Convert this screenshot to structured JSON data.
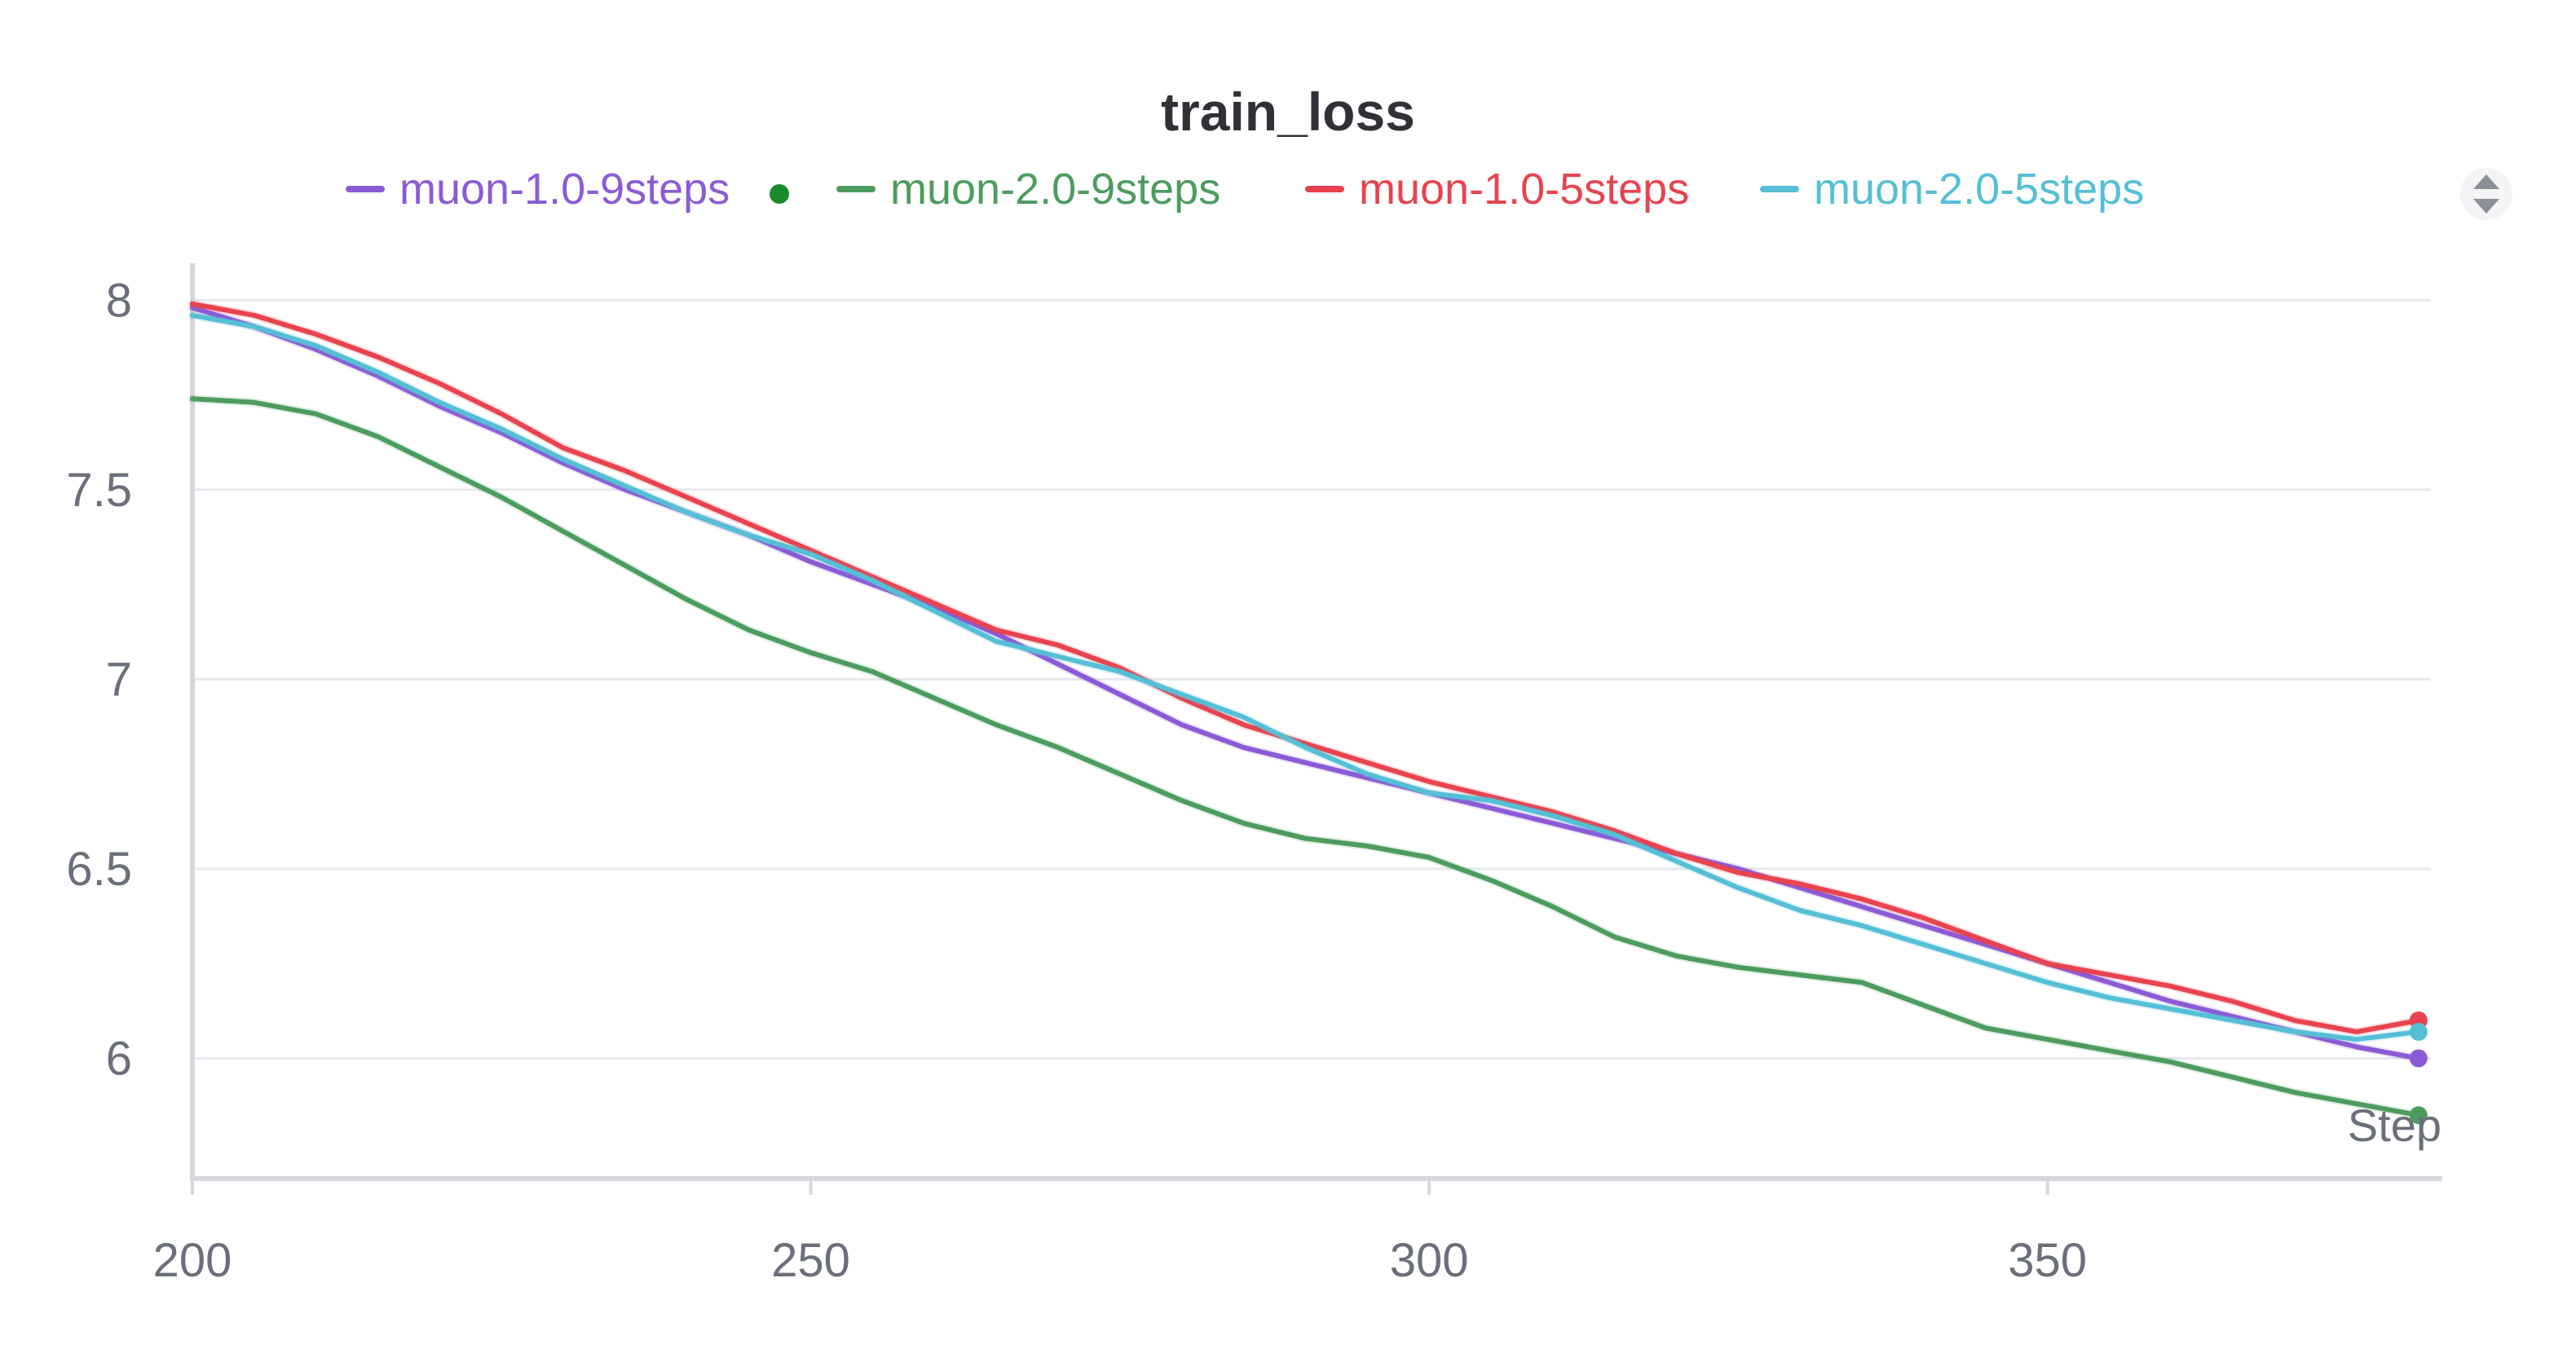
{
  "chart_data": {
    "type": "line",
    "title": "train_loss",
    "xlabel": "Step",
    "ylabel": "",
    "xlim": [
      200,
      381
    ],
    "ylim": [
      5.7,
      8.05
    ],
    "x_ticks": [
      200,
      250,
      300,
      350
    ],
    "x_tick_labels": [
      "200",
      "250",
      "300",
      "350"
    ],
    "y_ticks": [
      8,
      7.5,
      7,
      6.5,
      6
    ],
    "y_tick_labels": [
      "8",
      "7.5",
      "7",
      "6.5",
      "6"
    ],
    "grid": true,
    "legend_position": "top",
    "legend_controls": {
      "toggle_icon": "chevron-up-down-icon"
    },
    "x": [
      200,
      205,
      210,
      215,
      220,
      225,
      230,
      235,
      240,
      245,
      250,
      255,
      260,
      265,
      270,
      275,
      280,
      285,
      290,
      295,
      300,
      305,
      310,
      315,
      320,
      325,
      330,
      335,
      340,
      345,
      350,
      355,
      360,
      365,
      370,
      375,
      380
    ],
    "series": [
      {
        "name": "muon-1.0-9steps",
        "color": "#8b5bd6",
        "marker": "filled-dot",
        "values": [
          7.98,
          7.93,
          7.87,
          7.8,
          7.72,
          7.65,
          7.57,
          7.5,
          7.44,
          7.38,
          7.31,
          7.25,
          7.19,
          7.12,
          7.04,
          6.96,
          6.88,
          6.82,
          6.78,
          6.74,
          6.7,
          6.66,
          6.62,
          6.58,
          6.54,
          6.5,
          6.45,
          6.4,
          6.35,
          6.3,
          6.25,
          6.2,
          6.15,
          6.11,
          6.07,
          6.03,
          6.0
        ]
      },
      {
        "name": "muon-2.0-9steps",
        "color": "#4c9c5f",
        "marker": "filled-dot",
        "values": [
          7.74,
          7.73,
          7.7,
          7.64,
          7.56,
          7.48,
          7.39,
          7.3,
          7.21,
          7.13,
          7.07,
          7.02,
          6.95,
          6.88,
          6.82,
          6.75,
          6.68,
          6.62,
          6.58,
          6.56,
          6.53,
          6.47,
          6.4,
          6.32,
          6.27,
          6.24,
          6.22,
          6.2,
          6.14,
          6.08,
          6.05,
          6.02,
          5.99,
          5.95,
          5.91,
          5.88,
          5.85
        ]
      },
      {
        "name": "muon-1.0-5steps",
        "color": "#e8434f",
        "marker": "filled-dot",
        "values": [
          7.99,
          7.96,
          7.91,
          7.85,
          7.78,
          7.7,
          7.61,
          7.55,
          7.48,
          7.41,
          7.34,
          7.27,
          7.2,
          7.13,
          7.09,
          7.03,
          6.95,
          6.88,
          6.83,
          6.78,
          6.73,
          6.69,
          6.65,
          6.6,
          6.54,
          6.49,
          6.46,
          6.42,
          6.37,
          6.31,
          6.25,
          6.22,
          6.19,
          6.15,
          6.1,
          6.07,
          6.1
        ]
      },
      {
        "name": "muon-2.0-5steps",
        "color": "#55bfd6",
        "marker": "filled-dot",
        "values": [
          7.96,
          7.93,
          7.88,
          7.81,
          7.73,
          7.66,
          7.58,
          7.51,
          7.44,
          7.38,
          7.33,
          7.26,
          7.18,
          7.1,
          7.06,
          7.02,
          6.96,
          6.9,
          6.82,
          6.75,
          6.7,
          6.68,
          6.64,
          6.59,
          6.52,
          6.45,
          6.39,
          6.35,
          6.3,
          6.25,
          6.2,
          6.16,
          6.13,
          6.1,
          6.07,
          6.05,
          6.07
        ]
      }
    ]
  }
}
